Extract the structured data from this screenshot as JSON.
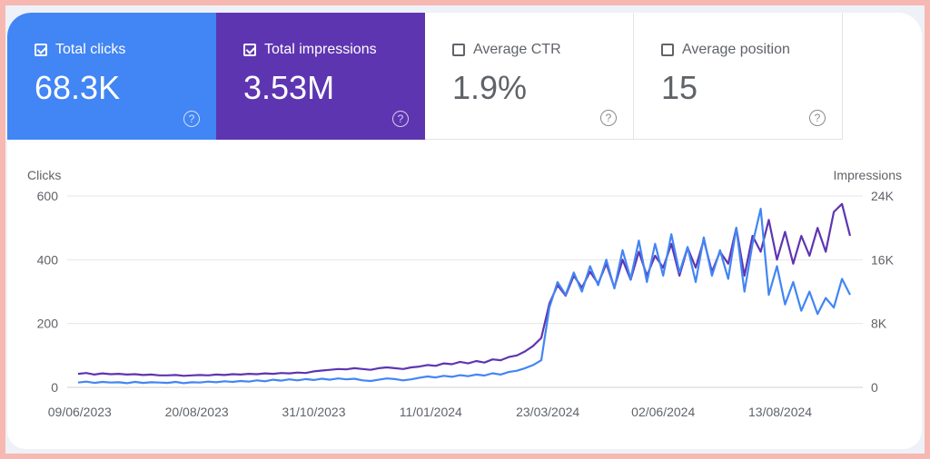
{
  "tiles": [
    {
      "label": "Total clicks",
      "value": "68.3K",
      "checked": true,
      "color": "#4285f4"
    },
    {
      "label": "Total impressions",
      "value": "3.53M",
      "checked": true,
      "color": "#5e35b1"
    },
    {
      "label": "Average CTR",
      "value": "1.9%",
      "checked": false
    },
    {
      "label": "Average position",
      "value": "15",
      "checked": false
    }
  ],
  "help_glyph": "?",
  "chart_data": {
    "type": "line",
    "ylabel_left": "Clicks",
    "ylabel_right": "Impressions",
    "yticks_left": [
      "0",
      "200",
      "400",
      "600"
    ],
    "yticks_right": [
      "0",
      "8K",
      "16K",
      "24K"
    ],
    "ylim_left": [
      0,
      600
    ],
    "ylim_right": [
      0,
      24000
    ],
    "xtick_labels": [
      "09/06/2023",
      "20/08/2023",
      "31/10/2023",
      "11/01/2024",
      "23/03/2024",
      "02/06/2024",
      "13/08/2024"
    ],
    "grid": true,
    "dates": [
      "2023-06-08",
      "2023-06-13",
      "2023-06-18",
      "2023-06-23",
      "2023-06-28",
      "2023-07-03",
      "2023-07-08",
      "2023-07-13",
      "2023-07-18",
      "2023-07-23",
      "2023-07-28",
      "2023-08-02",
      "2023-08-07",
      "2023-08-12",
      "2023-08-17",
      "2023-08-22",
      "2023-08-27",
      "2023-09-01",
      "2023-09-06",
      "2023-09-11",
      "2023-09-16",
      "2023-09-21",
      "2023-09-26",
      "2023-10-01",
      "2023-10-06",
      "2023-10-11",
      "2023-10-16",
      "2023-10-21",
      "2023-10-26",
      "2023-10-31",
      "2023-11-05",
      "2023-11-10",
      "2023-11-15",
      "2023-11-20",
      "2023-11-25",
      "2023-11-30",
      "2023-12-05",
      "2023-12-10",
      "2023-12-15",
      "2023-12-20",
      "2023-12-25",
      "2023-12-30",
      "2024-01-04",
      "2024-01-09",
      "2024-01-14",
      "2024-01-19",
      "2024-01-24",
      "2024-01-29",
      "2024-02-03",
      "2024-02-08",
      "2024-02-13",
      "2024-02-18",
      "2024-02-23",
      "2024-02-28",
      "2024-03-04",
      "2024-03-09",
      "2024-03-14",
      "2024-03-19",
      "2024-03-24",
      "2024-03-29",
      "2024-04-03",
      "2024-04-08",
      "2024-04-13",
      "2024-04-18",
      "2024-04-23",
      "2024-04-28",
      "2024-05-03",
      "2024-05-08",
      "2024-05-13",
      "2024-05-18",
      "2024-05-23",
      "2024-05-28",
      "2024-06-02",
      "2024-06-07",
      "2024-06-12",
      "2024-06-17",
      "2024-06-22",
      "2024-06-27",
      "2024-07-02",
      "2024-07-07",
      "2024-07-12",
      "2024-07-17",
      "2024-07-22",
      "2024-07-27",
      "2024-08-01",
      "2024-08-06",
      "2024-08-11",
      "2024-08-16",
      "2024-08-21",
      "2024-08-26",
      "2024-08-31",
      "2024-09-05",
      "2024-09-10",
      "2024-09-15",
      "2024-09-20",
      "2024-09-25"
    ],
    "series": [
      {
        "name": "Clicks",
        "axis": "left",
        "color": "#4285f4",
        "values": [
          15,
          18,
          14,
          17,
          15,
          16,
          13,
          17,
          14,
          16,
          15,
          14,
          17,
          13,
          16,
          15,
          18,
          16,
          19,
          17,
          20,
          18,
          22,
          19,
          24,
          21,
          25,
          22,
          26,
          23,
          27,
          24,
          28,
          25,
          27,
          22,
          20,
          24,
          28,
          26,
          22,
          25,
          30,
          34,
          31,
          36,
          33,
          38,
          35,
          40,
          37,
          44,
          40,
          48,
          52,
          60,
          70,
          85,
          250,
          330,
          290,
          360,
          300,
          380,
          320,
          400,
          310,
          430,
          340,
          460,
          330,
          450,
          350,
          480,
          360,
          440,
          330,
          470,
          350,
          430,
          340,
          500,
          300,
          450,
          560,
          290,
          380,
          260,
          330,
          240,
          300,
          230,
          280,
          250,
          340,
          290
        ]
      },
      {
        "name": "Impressions",
        "axis": "right",
        "color": "#5e35b1",
        "values": [
          1700,
          1800,
          1600,
          1750,
          1650,
          1700,
          1600,
          1650,
          1550,
          1600,
          1500,
          1500,
          1550,
          1450,
          1500,
          1550,
          1500,
          1600,
          1550,
          1650,
          1600,
          1700,
          1650,
          1750,
          1700,
          1800,
          1750,
          1850,
          1800,
          2000,
          2100,
          2200,
          2300,
          2250,
          2400,
          2300,
          2200,
          2400,
          2500,
          2400,
          2300,
          2500,
          2600,
          2800,
          2700,
          3000,
          2900,
          3200,
          3000,
          3300,
          3100,
          3500,
          3400,
          3800,
          4000,
          4500,
          5200,
          6200,
          10500,
          12800,
          11500,
          14000,
          12500,
          14500,
          13000,
          15500,
          12500,
          16000,
          13500,
          17000,
          14000,
          16500,
          15000,
          18000,
          14000,
          17500,
          15000,
          18500,
          14500,
          17000,
          15500,
          20000,
          14000,
          19000,
          17000,
          21000,
          16000,
          19500,
          15500,
          19000,
          16500,
          20000,
          17000,
          22000,
          23000,
          19000
        ]
      }
    ]
  }
}
